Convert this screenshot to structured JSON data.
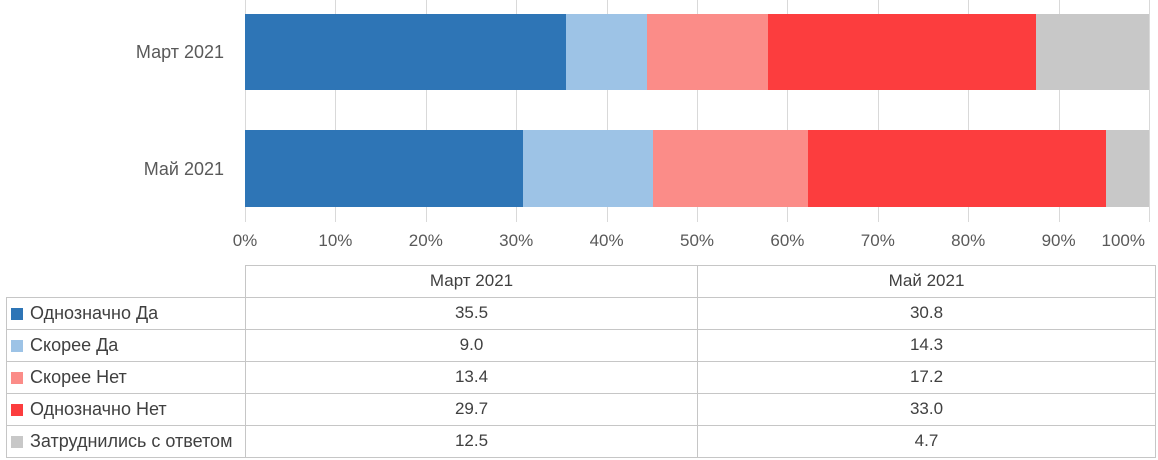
{
  "chart_data": {
    "type": "bar",
    "subtype": "horizontal-stacked-100",
    "title": "",
    "categories": [
      "Март 2021",
      "Май 2021"
    ],
    "series": [
      {
        "name": "Однозначно Да",
        "color": "#2E75B6",
        "values": [
          35.5,
          30.8
        ]
      },
      {
        "name": "Скорее Да",
        "color": "#9DC3E6",
        "values": [
          9.0,
          14.3
        ]
      },
      {
        "name": "Скорее Нет",
        "color": "#FB8C88",
        "values": [
          13.4,
          17.2
        ]
      },
      {
        "name": "Однозначно Нет",
        "color": "#FC3D3E",
        "values": [
          29.7,
          33.0
        ]
      },
      {
        "name": "Затруднились с ответом",
        "color": "#C8C8C8",
        "values": [
          12.5,
          4.7
        ]
      }
    ],
    "x_axis": {
      "min": 0,
      "max": 100,
      "unit": "%",
      "ticks": [
        "0%",
        "10%",
        "20%",
        "30%",
        "40%",
        "50%",
        "60%",
        "70%",
        "80%",
        "90%",
        "100%"
      ]
    },
    "grid": true,
    "legend_position": "table-below-chart"
  },
  "table": {
    "columns": [
      "",
      "Март 2021",
      "Май 2021"
    ],
    "rows": [
      {
        "label": "Однозначно Да",
        "color": "#2E75B6",
        "values": [
          "35.5",
          "30.8"
        ]
      },
      {
        "label": "Скорее Да",
        "color": "#9DC3E6",
        "values": [
          "9.0",
          "14.3"
        ]
      },
      {
        "label": "Скорее Нет",
        "color": "#FB8C88",
        "values": [
          "13.4",
          "17.2"
        ]
      },
      {
        "label": "Однозначно Нет",
        "color": "#FC3D3E",
        "values": [
          "29.7",
          "33.0"
        ]
      },
      {
        "label": "Затруднились с ответом",
        "color": "#C8C8C8",
        "values": [
          "12.5",
          "4.7"
        ]
      }
    ]
  },
  "colors": {
    "gridline": "#D9D9D9",
    "table_border": "#C6C6C6",
    "axis_text": "#595959",
    "table_text": "#404040",
    "background": "#FFFFFF"
  }
}
